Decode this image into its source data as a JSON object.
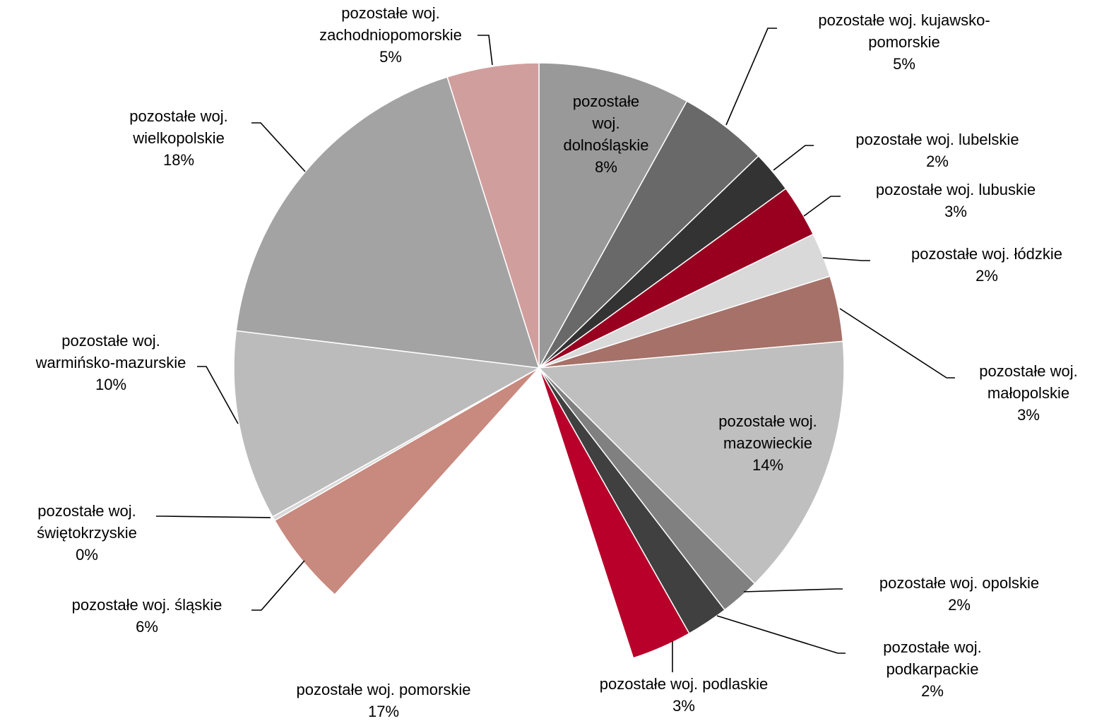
{
  "chart_data": {
    "type": "pie",
    "title": "",
    "slices": [
      {
        "name": "pozostałe woj. dolnośląskie",
        "value": 8,
        "label": "8%",
        "color": "#999999"
      },
      {
        "name": "pozostałe woj. kujawsko-pomorskie",
        "value": 5,
        "label": "5%",
        "color": "#696969"
      },
      {
        "name": "pozostałe woj. lubelskie",
        "value": 2,
        "label": "2%",
        "color": "#333333"
      },
      {
        "name": "pozostałe woj. lubuskie",
        "value": 3,
        "label": "3%",
        "color": "#990020"
      },
      {
        "name": "pozostałe woj. łódzkie",
        "value": 2,
        "label": "2%",
        "color": "#d9d9d9"
      },
      {
        "name": "pozostałe woj. małopolskie",
        "value": 3,
        "label": "3%",
        "color": "#a57168"
      },
      {
        "name": "pozostałe woj. mazowieckie",
        "value": 14,
        "label": "14%",
        "color": "#bfbfbf"
      },
      {
        "name": "pozostałe woj. opolskie",
        "value": 2,
        "label": "2%",
        "color": "#808080"
      },
      {
        "name": "pozostałe woj. podkarpackie",
        "value": 2,
        "label": "2%",
        "color": "#404040"
      },
      {
        "name": "pozostałe woj. podlaskie",
        "value": 3,
        "label": "3%",
        "color": "#b8002a"
      },
      {
        "name": "pozostałe woj. pomorskie",
        "value": 17,
        "label": "17%",
        "color": "#ffffff"
      },
      {
        "name": "pozostałe woj. śląskie",
        "value": 6,
        "label": "6%",
        "color": "#c8897e"
      },
      {
        "name": "pozostałe woj. świętokrzyskie",
        "value": 0,
        "label": "0%",
        "color": "#d9d9d9"
      },
      {
        "name": "pozostałe woj. warmińsko-mazurskie",
        "value": 10,
        "label": "10%",
        "color": "#bbbbbb"
      },
      {
        "name": "pozostałe woj. wielkopolskie",
        "value": 18,
        "label": "18%",
        "color": "#a3a3a3"
      },
      {
        "name": "pozostałe woj. zachodniopomorskie",
        "value": 5,
        "label": "5%",
        "color": "#d19e9e"
      }
    ],
    "legend": "none",
    "label_placement": "outside with leader lines"
  }
}
